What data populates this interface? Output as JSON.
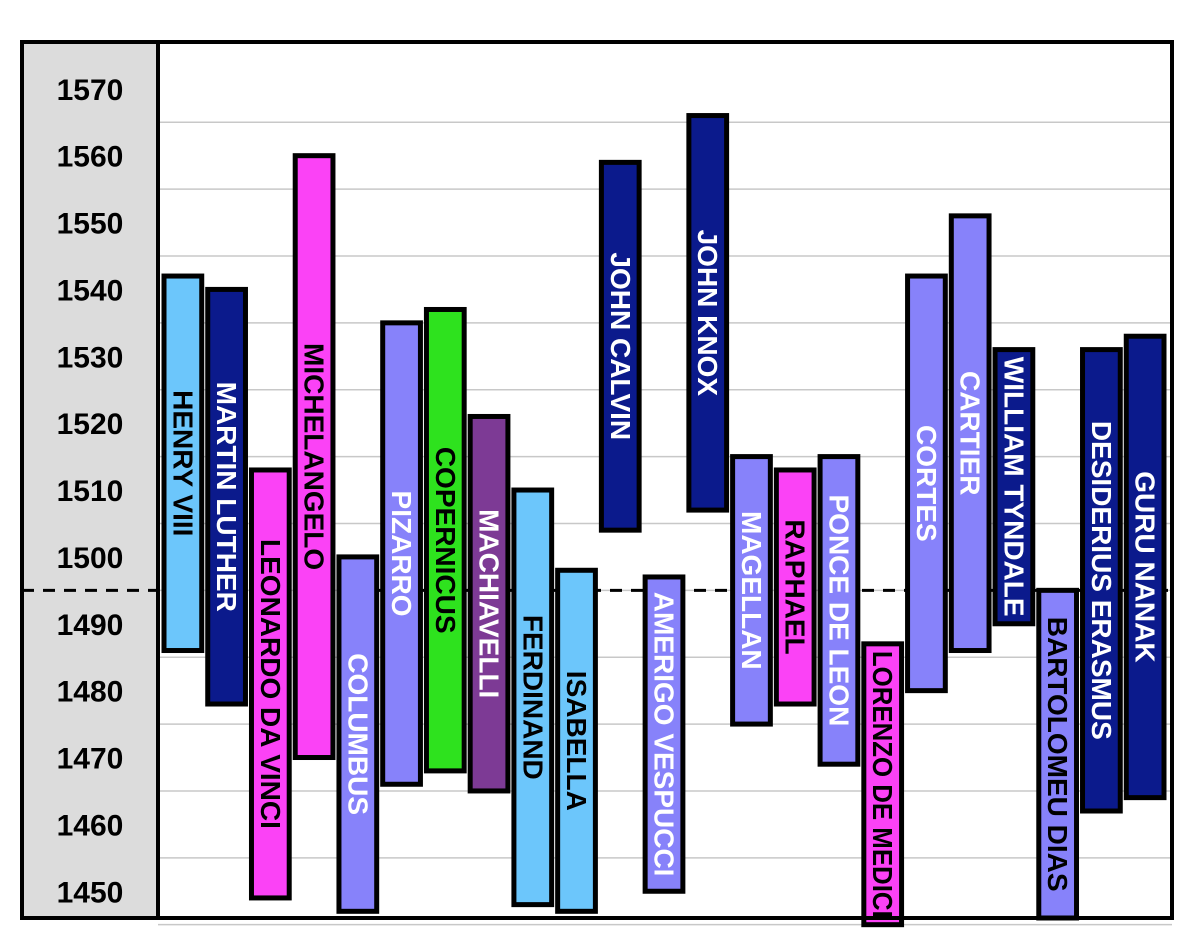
{
  "chart_data": {
    "type": "bar",
    "orientation": "vertical-range",
    "title": "",
    "xlabel": "",
    "ylabel": "",
    "ylim": [
      1446,
      1577
    ],
    "yticks": [
      1570,
      1560,
      1550,
      1540,
      1530,
      1520,
      1510,
      1500,
      1490,
      1480,
      1470,
      1460,
      1450
    ],
    "grid": true,
    "reference_line": {
      "value": 1495,
      "style": "dashed"
    },
    "colors": {
      "light_blue": "#6cc6fb",
      "navy": "#0b1a8c",
      "magenta": "#fb42f6",
      "periwinkle": "#8782fa",
      "green": "#2ee21e",
      "purple": "#7d3a95",
      "axis_panel": "#dcdcdc"
    },
    "bars": [
      {
        "label": "HENRY VIII",
        "start": 1486,
        "end": 1542,
        "color": "#6cc6fb",
        "text_color": "#000000"
      },
      {
        "label": "MARTIN LUTHER",
        "start": 1478,
        "end": 1540,
        "color": "#0b1a8c",
        "text_color": "#ffffff"
      },
      {
        "label": "LEONARDO DA VINCI",
        "start": 1449,
        "end": 1513,
        "color": "#fb42f6",
        "text_color": "#000000"
      },
      {
        "label": "MICHELANGELO",
        "start": 1470,
        "end": 1560,
        "color": "#fb42f6",
        "text_color": "#000000"
      },
      {
        "label": "COLUMBUS",
        "start": 1447,
        "end": 1500,
        "color": "#8782fa",
        "text_color": "#ffffff"
      },
      {
        "label": "PIZARRO",
        "start": 1466,
        "end": 1535,
        "color": "#8782fa",
        "text_color": "#ffffff"
      },
      {
        "label": "COPERNICUS",
        "start": 1468,
        "end": 1537,
        "color": "#2ee21e",
        "text_color": "#000000"
      },
      {
        "label": "MACHIAVELLI",
        "start": 1465,
        "end": 1521,
        "color": "#7d3a95",
        "text_color": "#ffffff"
      },
      {
        "label": "FERDINAND",
        "start": 1448,
        "end": 1510,
        "color": "#6cc6fb",
        "text_color": "#000000"
      },
      {
        "label": "ISABELLA",
        "start": 1447,
        "end": 1498,
        "color": "#6cc6fb",
        "text_color": "#000000"
      },
      {
        "label": "JOHN CALVIN",
        "start": 1504,
        "end": 1559,
        "color": "#0b1a8c",
        "text_color": "#ffffff"
      },
      {
        "label": "AMERIGO VESPUCCI",
        "start": 1450,
        "end": 1497,
        "color": "#8782fa",
        "text_color": "#ffffff"
      },
      {
        "label": "JOHN KNOX",
        "start": 1507,
        "end": 1566,
        "color": "#0b1a8c",
        "text_color": "#ffffff"
      },
      {
        "label": "MAGELLAN",
        "start": 1475,
        "end": 1515,
        "color": "#8782fa",
        "text_color": "#ffffff"
      },
      {
        "label": "RAPHAEL",
        "start": 1478,
        "end": 1513,
        "color": "#fb42f6",
        "text_color": "#000000"
      },
      {
        "label": "PONCE DE LEON",
        "start": 1469,
        "end": 1515,
        "color": "#8782fa",
        "text_color": "#ffffff"
      },
      {
        "label": "LORENZO DE MEDICI",
        "start": 1445,
        "end": 1487,
        "color": "#fb42f6",
        "text_color": "#000000"
      },
      {
        "label": "CORTES",
        "start": 1480,
        "end": 1542,
        "color": "#8782fa",
        "text_color": "#ffffff"
      },
      {
        "label": "CARTIER",
        "start": 1486,
        "end": 1551,
        "color": "#8782fa",
        "text_color": "#ffffff"
      },
      {
        "label": "WILLIAM TYNDALE",
        "start": 1490,
        "end": 1531,
        "color": "#0b1a8c",
        "text_color": "#ffffff"
      },
      {
        "label": "BARTOLOMEU DIAS",
        "start": 1446,
        "end": 1495,
        "color": "#8782fa",
        "text_color": "#000000"
      },
      {
        "label": "DESIDERIUS ERASMUS",
        "start": 1462,
        "end": 1531,
        "color": "#0b1a8c",
        "text_color": "#ffffff"
      },
      {
        "label": "GURU NANAK",
        "start": 1464,
        "end": 1533,
        "color": "#0b1a8c",
        "text_color": "#ffffff"
      }
    ]
  }
}
